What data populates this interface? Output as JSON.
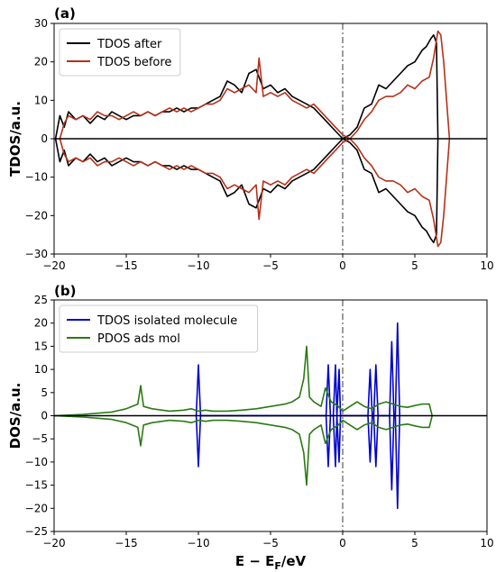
{
  "chart_data": [
    {
      "panel_label": "(a)",
      "type": "line",
      "ylabel": "TDOS/a.u.",
      "xlabel": "",
      "xlim": [
        -20,
        10
      ],
      "ylim": [
        -30,
        30
      ],
      "xticks": [
        -20,
        -15,
        -10,
        -5,
        0,
        5,
        10
      ],
      "yticks": [
        -30,
        -20,
        -10,
        0,
        10,
        20,
        30
      ],
      "zero_line": true,
      "fermi_line": 0,
      "legend_position": "top-left",
      "mirrored": true,
      "series": [
        {
          "name": "TDOS after",
          "color": "#000000",
          "x": [
            -19.9,
            -19.6,
            -19.3,
            -19,
            -18.5,
            -18,
            -17.5,
            -17,
            -16.5,
            -16,
            -15.5,
            -15,
            -14.5,
            -14,
            -13.5,
            -13,
            -12.5,
            -12,
            -11.5,
            -11,
            -10.5,
            -10,
            -9.5,
            -9,
            -8.5,
            -8,
            -7.5,
            -7,
            -6.5,
            -6,
            -5.5,
            -5,
            -4.5,
            -4,
            -3.5,
            -3,
            -2.5,
            -2,
            -1.5,
            -1,
            -0.5,
            0,
            0.5,
            1,
            1.5,
            2,
            2.5,
            3,
            3.5,
            4,
            4.5,
            5,
            5.5,
            5.8,
            6.1,
            6.3,
            6.5,
            6.6
          ],
          "values": [
            0,
            6,
            3,
            7,
            5,
            6,
            4,
            6,
            5,
            7,
            6,
            5,
            6,
            6,
            7,
            6,
            7,
            7,
            8,
            7,
            8,
            8,
            9,
            10,
            11,
            15,
            14,
            12,
            17,
            18,
            13,
            14,
            12,
            13,
            11,
            10,
            9,
            8,
            6,
            4,
            2,
            0,
            1,
            3,
            8,
            9,
            14,
            13,
            15,
            17,
            19,
            20,
            23,
            24,
            26,
            27,
            25,
            0
          ]
        },
        {
          "name": "TDOS before",
          "color": "#b5311a",
          "x": [
            -19.6,
            -19.3,
            -19,
            -18.5,
            -18,
            -17.5,
            -17,
            -16.5,
            -16,
            -15.5,
            -15,
            -14.5,
            -14,
            -13.5,
            -13,
            -12.5,
            -12,
            -11.5,
            -11,
            -10.5,
            -10,
            -9.5,
            -9,
            -8.5,
            -8,
            -7.5,
            -7,
            -6.5,
            -6,
            -5.8,
            -5.5,
            -5,
            -4.5,
            -4,
            -3.5,
            -3,
            -2.5,
            -2,
            -1.5,
            -1,
            -0.5,
            0,
            0.5,
            1,
            1.5,
            2,
            2.5,
            3,
            3.5,
            4,
            4.5,
            5,
            5.5,
            6,
            6.3,
            6.6,
            6.8,
            7,
            7.2,
            7.4
          ],
          "values": [
            0,
            4,
            6,
            5,
            6,
            5,
            7,
            6,
            6,
            5,
            6,
            7,
            6,
            7,
            6,
            7,
            8,
            7,
            8,
            7,
            8,
            9,
            9,
            10,
            13,
            12,
            13,
            14,
            12,
            21,
            11,
            12,
            11,
            12,
            10,
            9,
            8,
            9,
            7,
            5,
            3,
            1,
            0,
            2,
            5,
            7,
            10,
            11,
            11,
            12,
            14,
            13,
            15,
            16,
            21,
            28,
            27,
            20,
            10,
            0
          ]
        }
      ]
    },
    {
      "panel_label": "(b)",
      "type": "line",
      "ylabel": "DOS/a.u.",
      "xlabel": "E − E",
      "xlabel_sub": "F",
      "xlabel_tail": "/eV",
      "xlim": [
        -20,
        10
      ],
      "ylim": [
        -25,
        25
      ],
      "xticks": [
        -20,
        -15,
        -10,
        -5,
        0,
        5,
        10
      ],
      "yticks": [
        -25,
        -20,
        -15,
        -10,
        -5,
        0,
        5,
        10,
        15,
        20,
        25
      ],
      "zero_line": true,
      "fermi_line": 0,
      "legend_position": "top-left",
      "mirrored": true,
      "series": [
        {
          "name": "TDOS isolated molecule",
          "color": "#0000cc",
          "x": [
            -10.15,
            -10,
            -9.85,
            -1.15,
            -1,
            -0.85,
            -0.65,
            -0.5,
            -0.4,
            -0.25,
            -0.15,
            1.75,
            1.9,
            2.05,
            2.15,
            2.3,
            2.45,
            3.25,
            3.4,
            3.55,
            3.65,
            3.8,
            3.95
          ],
          "values": [
            0,
            11,
            0,
            0,
            11,
            0,
            0,
            11,
            0,
            10,
            0,
            0,
            10,
            0,
            0,
            11,
            0,
            0,
            16,
            0,
            0,
            20,
            0
          ]
        },
        {
          "name": "PDOS ads mol",
          "color": "#2a7a12",
          "x": [
            -20,
            -18,
            -16,
            -15,
            -14.2,
            -14,
            -13.8,
            -13.2,
            -12,
            -11,
            -10.5,
            -10,
            -9.5,
            -9,
            -8,
            -7,
            -6,
            -5,
            -4,
            -3.5,
            -3,
            -2.7,
            -2.5,
            -2.3,
            -2,
            -1.5,
            -1.2,
            -0.8,
            -0.3,
            0,
            0.5,
            1,
            1.5,
            2,
            2.5,
            3,
            3.5,
            4,
            4.5,
            5,
            5.5,
            6,
            6.2
          ],
          "values": [
            0,
            0.3,
            0.8,
            1.5,
            2.5,
            6.5,
            2,
            1.5,
            1,
            1.2,
            1.5,
            1,
            1.2,
            1,
            1,
            1.2,
            1.5,
            2,
            2.5,
            3,
            4,
            8,
            15,
            4,
            3,
            2,
            6,
            3,
            2,
            1,
            2,
            3,
            2,
            1.5,
            2.5,
            3,
            2.5,
            2,
            1.8,
            2.2,
            2.5,
            2.5,
            0
          ]
        }
      ]
    }
  ]
}
